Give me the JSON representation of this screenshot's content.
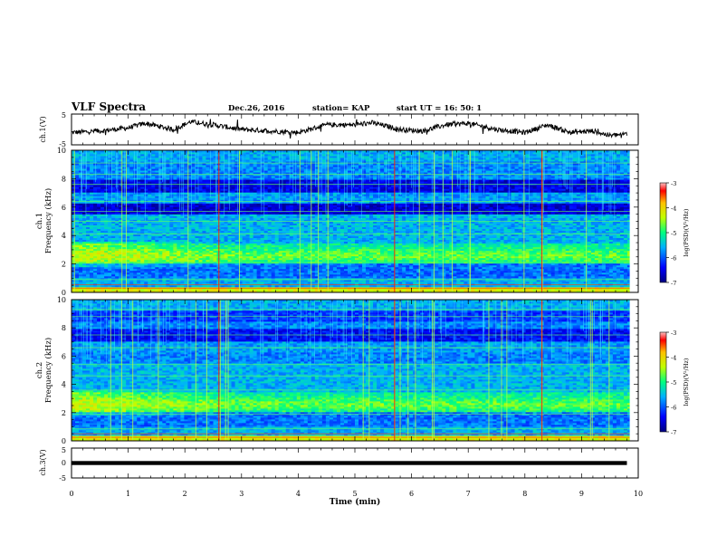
{
  "header": {
    "title": "VLF Spectra",
    "date": "Dec.26, 2016",
    "station": "station= KAP",
    "start_time": "start  UT =   16: 50: 1"
  },
  "chart_data": [
    {
      "name": "ch1-waveform",
      "type": "line",
      "ylabel": "ch.1(V)",
      "ylim": [
        -5,
        5
      ],
      "yticks": [
        "5",
        "-5"
      ],
      "xlim": [
        0,
        10
      ],
      "series": [
        {
          "x": [
            0,
            0.5,
            1,
            1.3,
            1.8,
            2.1,
            2.5,
            3,
            3.5,
            4,
            4.5,
            5,
            5.3,
            5.8,
            6.2,
            6.6,
            7,
            7.5,
            8,
            8.4,
            8.8,
            9.2,
            9.5,
            9.8
          ],
          "y": [
            -1,
            -0.5,
            0.5,
            2,
            0,
            2.5,
            1.5,
            0,
            -0.5,
            -1,
            1.5,
            1.5,
            2.2,
            0,
            -0.5,
            1.5,
            2,
            0,
            -1,
            1.5,
            -1,
            -0.5,
            -2,
            -1.5
          ]
        }
      ]
    },
    {
      "name": "ch1-spectrogram",
      "type": "heatmap",
      "ylabel": "ch.1",
      "ylabel2": "Frequency  (kHz)",
      "ylim": [
        0,
        10
      ],
      "yticks": [
        "0",
        "2",
        "4",
        "6",
        "8",
        "10"
      ],
      "colorbar": {
        "label": "log(PSD)(V²/Hz)",
        "range": [
          -7,
          -3
        ],
        "ticks": [
          "-3",
          "-4",
          "-5",
          "-6",
          "-7"
        ]
      }
    },
    {
      "name": "ch2-spectrogram",
      "type": "heatmap",
      "ylabel": "ch.2",
      "ylabel2": "Frequency  (kHz)",
      "ylim": [
        0,
        10
      ],
      "yticks": [
        "0",
        "2",
        "4",
        "6",
        "8",
        "10"
      ],
      "colorbar": {
        "label": "log(PSD)(V²/Hz)",
        "range": [
          -7,
          -3
        ],
        "ticks": [
          "-3",
          "-4",
          "-5",
          "-6",
          "-7"
        ]
      }
    },
    {
      "name": "ch3-waveform",
      "type": "line",
      "ylabel": "ch.3(V)",
      "ylim": [
        -5,
        5
      ],
      "yticks": [
        "5",
        "0",
        "-5"
      ],
      "series": [
        {
          "x": [
            0,
            9.8
          ],
          "y": [
            0,
            0
          ]
        }
      ]
    }
  ],
  "xaxis": {
    "label": "Time  (min)",
    "ticks": [
      "0",
      "1",
      "2",
      "3",
      "4",
      "5",
      "6",
      "7",
      "8",
      "9",
      "10"
    ],
    "xlim": [
      0,
      10
    ]
  }
}
